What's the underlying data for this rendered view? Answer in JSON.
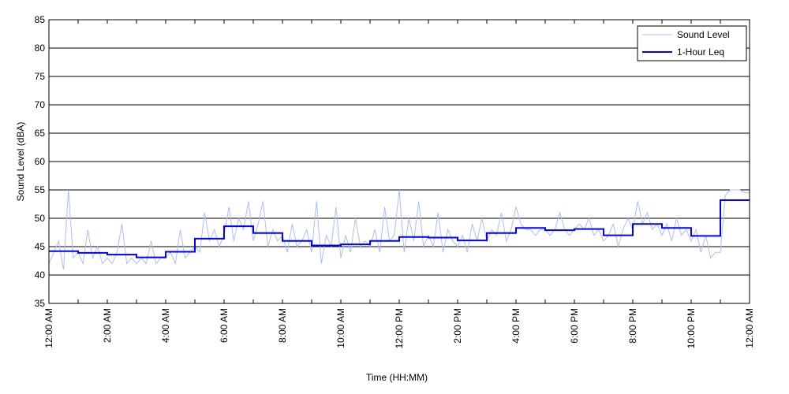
{
  "chart_data": {
    "type": "line",
    "xlabel": "Time (HH:MM)",
    "ylabel": "Sound Level (dBA)",
    "ylim": [
      35,
      85
    ],
    "yticks": [
      35,
      40,
      45,
      50,
      55,
      60,
      65,
      70,
      75,
      80,
      85
    ],
    "xlim_hours": [
      0,
      24
    ],
    "xtick_labels": [
      "12:00 AM",
      "2:00 AM",
      "4:00 AM",
      "6:00 AM",
      "8:00 AM",
      "10:00 AM",
      "12:00 PM",
      "2:00 PM",
      "4:00 PM",
      "6:00 PM",
      "8:00 PM",
      "10:00 PM",
      "12:00 AM"
    ],
    "grid": "horizontal",
    "legend_position": "top-right",
    "series": [
      {
        "name": "Sound Level",
        "color": "#a8c0f8",
        "sample_interval_minutes": 10,
        "values": [
          42,
          44,
          46,
          41,
          55,
          43,
          44,
          42,
          48,
          43,
          45,
          42,
          43,
          42,
          44,
          49,
          42,
          43,
          42,
          43,
          42,
          46,
          42,
          43,
          43,
          44,
          42,
          48,
          43,
          44,
          45,
          44,
          51,
          46,
          48,
          45,
          47,
          52,
          46,
          50,
          48,
          53,
          46,
          49,
          53,
          45,
          48,
          46,
          47,
          44,
          49,
          45,
          46,
          48,
          44,
          53,
          42,
          47,
          45,
          52,
          43,
          47,
          44,
          50,
          45,
          46,
          45,
          48,
          44,
          52,
          46,
          47,
          55,
          44,
          50,
          46,
          53,
          45,
          47,
          45,
          51,
          44,
          48,
          46,
          45,
          47,
          44,
          49,
          46,
          50,
          46,
          48,
          47,
          51,
          46,
          48,
          52,
          49,
          48,
          48,
          47,
          48,
          48,
          47,
          48,
          51,
          48,
          47,
          48,
          49,
          48,
          50,
          47,
          48,
          46,
          47,
          49,
          45,
          48,
          50,
          48,
          53,
          49,
          51,
          48,
          49,
          47,
          49,
          46,
          50,
          47,
          48,
          46,
          48,
          44,
          47,
          43,
          44,
          44,
          54,
          55,
          55,
          55,
          54.5,
          54.5
        ]
      },
      {
        "name": "1-Hour Leq",
        "color": "#0000ff",
        "values": [
          44.2,
          43.9,
          43.6,
          43.1,
          44.1,
          46.4,
          48.6,
          47.4,
          46.0,
          45.2,
          45.4,
          46.0,
          46.7,
          46.6,
          46.1,
          47.4,
          48.3,
          47.9,
          48.1,
          47.0,
          49.0,
          48.3,
          46.9,
          53.2
        ]
      }
    ]
  }
}
